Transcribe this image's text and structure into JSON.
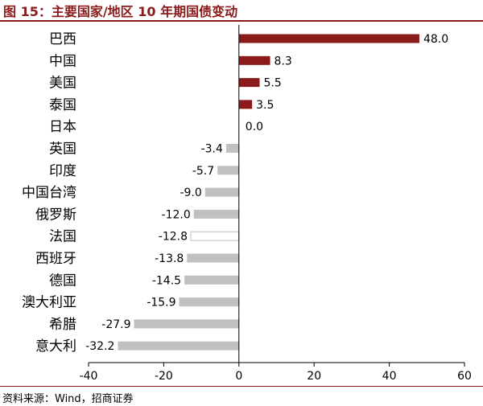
{
  "figure": {
    "title": "图 15：主要国家/地区 10 年期国债变动",
    "source": "资料来源：Wind，招商证券"
  },
  "colors": {
    "title": "#8b1a1a",
    "positive": "#8b1a1a",
    "negative": "#c0c0c0",
    "highlight_outline": "#c0c0c0"
  },
  "chart_data": {
    "type": "bar",
    "orientation": "horizontal",
    "categories": [
      "巴西",
      "中国",
      "美国",
      "泰国",
      "日本",
      "英国",
      "印度",
      "中国台湾",
      "俄罗斯",
      "法国",
      "西班牙",
      "德国",
      "澳大利亚",
      "希腊",
      "意大利"
    ],
    "values": [
      48.0,
      8.3,
      5.5,
      3.5,
      0.0,
      -3.4,
      -5.7,
      -9.0,
      -12.0,
      -12.8,
      -13.8,
      -14.5,
      -15.9,
      -27.9,
      -32.2
    ],
    "value_labels": [
      "48.0",
      "8.3",
      "5.5",
      "3.5",
      "0.0",
      "-3.4",
      "-5.7",
      "-9.0",
      "-12.0",
      "-12.8",
      "-13.8",
      "-14.5",
      "-15.9",
      "-27.9",
      "-32.2"
    ],
    "outlined_category": "法国",
    "xlim": [
      -40,
      60
    ],
    "xticks": [
      -40,
      -20,
      0,
      20,
      40,
      60
    ],
    "xtick_labels": [
      "-40",
      "-20",
      "0",
      "20",
      "40",
      "60"
    ],
    "grid": false,
    "legend": "none"
  }
}
